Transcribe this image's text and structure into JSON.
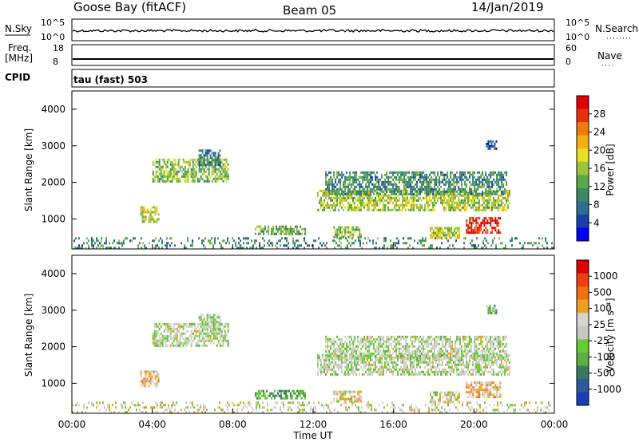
{
  "header": {
    "station": "Goose Bay (fitACF)",
    "beam": "Beam 05",
    "date": "14/Jan/2019"
  },
  "summary": {
    "nsky_label": "N.Sky",
    "nsearch_label": "N.Search",
    "freq_label": "Freq.",
    "freq_unit": "[MHz]",
    "nave_label": "Nave",
    "cpid_label": "CPID",
    "cpid_value": "tau (fast) 503",
    "noise_ticks_left": [
      "10^5",
      "10^0"
    ],
    "noise_ticks_right": [
      "10^5",
      "10^0"
    ],
    "freq_ticks": [
      "18",
      "8"
    ],
    "nave_ticks": [
      "60",
      "0"
    ]
  },
  "colors": {
    "power_scale": [
      "#0000ff",
      "#1a3fa8",
      "#2b6e8f",
      "#3b8a5e",
      "#5aa84a",
      "#9ec43a",
      "#e8e020",
      "#f5b010",
      "#f07a10",
      "#e83010",
      "#e00000"
    ],
    "velocity_scale": [
      "#1a3fb0",
      "#2a5aa0",
      "#3a7a5a",
      "#5ab040",
      "#66cc33",
      "#c8c8c0",
      "#d4d4d0",
      "#f0a020",
      "#f07010",
      "#ee4010",
      "#e00000"
    ]
  },
  "chart_data": [
    {
      "type": "heatmap",
      "title": "Power",
      "ylabel": "Slant Range [km]",
      "xlabel": "",
      "colorbar_label": "Power [dB]",
      "colorbar_ticks": [
        "28",
        "24",
        "20",
        "16",
        "12",
        "8",
        "4"
      ],
      "y_ticks": [
        "4000",
        "3000",
        "2000",
        "1000"
      ],
      "ylim": [
        180,
        4500
      ],
      "xlim": [
        0,
        24
      ],
      "regions": [
        {
          "t0": 4.0,
          "t1": 7.8,
          "r0": 2050,
          "r1": 2650,
          "level": 0.45
        },
        {
          "t0": 6.3,
          "t1": 7.4,
          "r0": 2450,
          "r1": 2900,
          "level": 0.25
        },
        {
          "t0": 3.4,
          "t1": 4.3,
          "r0": 950,
          "r1": 1350,
          "level": 0.55
        },
        {
          "t0": 9.1,
          "t1": 11.6,
          "r0": 580,
          "r1": 820,
          "level": 0.4
        },
        {
          "t0": 12.2,
          "t1": 21.8,
          "r0": 1250,
          "r1": 1800,
          "level": 0.5
        },
        {
          "t0": 12.6,
          "t1": 21.6,
          "r0": 1700,
          "r1": 2300,
          "level": 0.3
        },
        {
          "t0": 13.0,
          "t1": 14.4,
          "r0": 480,
          "r1": 800,
          "level": 0.45
        },
        {
          "t0": 17.8,
          "t1": 19.3,
          "r0": 480,
          "r1": 780,
          "level": 0.55
        },
        {
          "t0": 19.6,
          "t1": 21.3,
          "r0": 620,
          "r1": 1050,
          "level": 0.95
        },
        {
          "t0": 20.6,
          "t1": 21.1,
          "r0": 2900,
          "r1": 3150,
          "level": 0.15
        },
        {
          "t0": 0.0,
          "t1": 24.0,
          "r0": 200,
          "r1": 500,
          "level": 0.3
        }
      ]
    },
    {
      "type": "heatmap",
      "title": "Velocity",
      "ylabel": "Slant Range [km]",
      "xlabel": "Time UT",
      "colorbar_label": "Velocity [m s⁻¹]",
      "colorbar_ticks": [
        "1000",
        "500",
        "100",
        "25",
        "-25",
        "-100",
        "-500",
        "-1000"
      ],
      "y_ticks": [
        "4000",
        "3000",
        "2000",
        "1000"
      ],
      "x_ticks": [
        "00:00",
        "04:00",
        "08:00",
        "12:00",
        "16:00",
        "20:00",
        "00:00"
      ],
      "ylim": [
        180,
        4500
      ],
      "xlim": [
        0,
        24
      ],
      "regions": [
        {
          "t0": 4.0,
          "t1": 7.8,
          "r0": 2050,
          "r1": 2650,
          "level": 0.5
        },
        {
          "t0": 6.3,
          "t1": 7.4,
          "r0": 2450,
          "r1": 2900,
          "level": 0.48
        },
        {
          "t0": 3.4,
          "t1": 4.3,
          "r0": 950,
          "r1": 1350,
          "level": 0.62
        },
        {
          "t0": 9.1,
          "t1": 11.6,
          "r0": 580,
          "r1": 820,
          "level": 0.3
        },
        {
          "t0": 12.2,
          "t1": 21.8,
          "r0": 1250,
          "r1": 1800,
          "level": 0.5
        },
        {
          "t0": 12.6,
          "t1": 21.6,
          "r0": 1700,
          "r1": 2300,
          "level": 0.5
        },
        {
          "t0": 13.0,
          "t1": 14.4,
          "r0": 480,
          "r1": 800,
          "level": 0.58
        },
        {
          "t0": 17.8,
          "t1": 19.3,
          "r0": 480,
          "r1": 780,
          "level": 0.52
        },
        {
          "t0": 19.6,
          "t1": 21.3,
          "r0": 620,
          "r1": 1050,
          "level": 0.65
        },
        {
          "t0": 20.6,
          "t1": 21.1,
          "r0": 2900,
          "r1": 3150,
          "level": 0.35
        },
        {
          "t0": 0.0,
          "t1": 24.0,
          "r0": 200,
          "r1": 500,
          "level": 0.55
        }
      ]
    }
  ]
}
